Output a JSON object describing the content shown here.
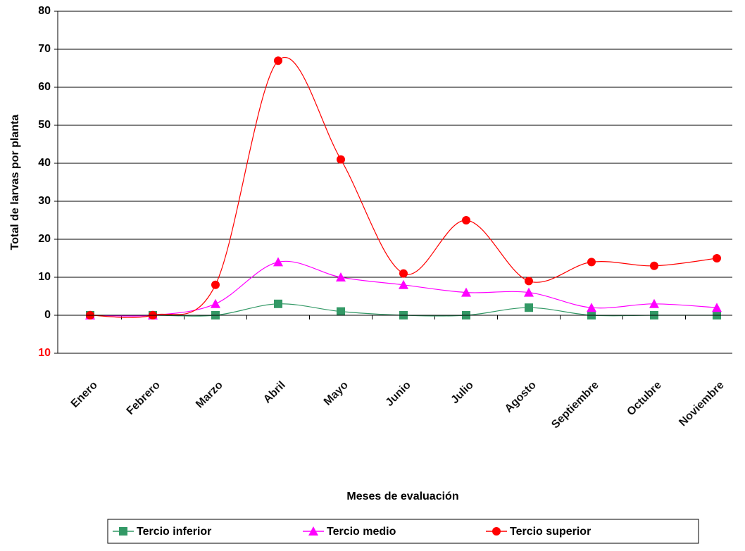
{
  "chart_data": {
    "type": "line",
    "x_label": "Meses de evaluación",
    "y_label": "Total  de larvas por planta",
    "categories": [
      "Enero",
      "Febrero",
      "Marzo",
      "Abril",
      "Mayo",
      "Junio",
      "Julio",
      "Agosto",
      "Septiembre",
      "Octubre",
      "Noviembre"
    ],
    "series": [
      {
        "name": "Tercio inferior",
        "color": "#339966",
        "marker": "square",
        "values": [
          0,
          0,
          0,
          3,
          1,
          0,
          0,
          2,
          0,
          0,
          0
        ]
      },
      {
        "name": "Tercio medio",
        "color": "#ff00ff",
        "marker": "triangle",
        "values": [
          0,
          0,
          3,
          14,
          10,
          8,
          6,
          6,
          2,
          3,
          2
        ]
      },
      {
        "name": "Tercio superior",
        "color": "#ff0000",
        "marker": "circle",
        "values": [
          0,
          0,
          8,
          67,
          41,
          11,
          25,
          9,
          14,
          13,
          15
        ]
      }
    ],
    "ylim": [
      -10,
      80
    ],
    "yticks": [
      {
        "value": -10,
        "label": "10",
        "color": "#ff0000"
      },
      0,
      10,
      20,
      30,
      40,
      50,
      60,
      70,
      80
    ],
    "grid": true,
    "smooth": true,
    "legend": "bottom"
  }
}
